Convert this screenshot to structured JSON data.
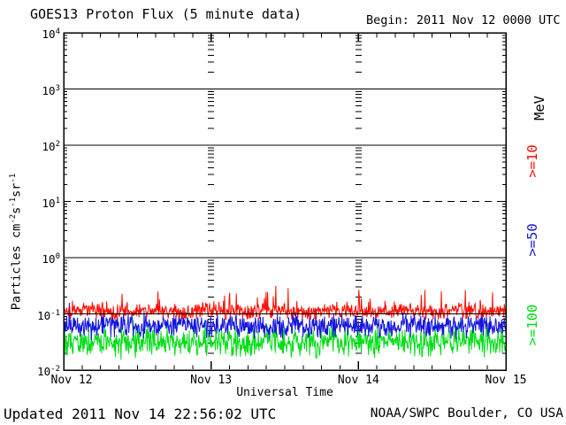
{
  "header": {
    "title": "GOES13 Proton Flux (5 minute data)",
    "begin": "Begin: 2011 Nov 12 0000 UTC"
  },
  "footer": {
    "updated": "Updated 2011 Nov 14 22:56:02 UTC",
    "source": "NOAA/SWPC Boulder, CO USA"
  },
  "chart_data": {
    "type": "line",
    "title": "GOES13 Proton Flux (5 minute data)",
    "xlabel": "Universal Time",
    "ylabel": "Particles cm^-2 s^-1 sr^-1",
    "ylabel_parts": [
      {
        "text": "Particles cm",
        "sup": false
      },
      {
        "text": "-2",
        "sup": true
      },
      {
        "text": "s",
        "sup": false
      },
      {
        "text": "-1",
        "sup": true
      },
      {
        "text": "sr",
        "sup": false
      },
      {
        "text": "-1",
        "sup": true
      }
    ],
    "legend_unit": "MeV",
    "x_axis": {
      "start_label": "Begin: 2011 Nov 12 0000 UTC",
      "days": 3,
      "tick_labels": [
        "Nov 12",
        "Nov 13",
        "Nov 14",
        "Nov 15"
      ],
      "minor_tick_hours": 3
    },
    "y_axis": {
      "scale": "log10",
      "min_exp": -2,
      "max_exp": 4,
      "tick_exponents": [
        4,
        3,
        2,
        1,
        0,
        -1,
        -2
      ]
    },
    "gridlines": [
      {
        "exp": 3,
        "style": "solid"
      },
      {
        "exp": 2,
        "style": "solid"
      },
      {
        "exp": 1,
        "style": "dashed"
      },
      {
        "exp": 0,
        "style": "solid"
      },
      {
        "exp": -1,
        "style": "solid"
      }
    ],
    "cadence_minutes": 5,
    "samples": 864,
    "series": [
      {
        "name": ">=10",
        "color": "#fb0d00",
        "approx_mean_flux": 0.11,
        "approx_range": [
          0.08,
          0.32
        ],
        "center_log": -0.95,
        "spread_log": 0.17,
        "spike_prob": 0.05,
        "spike_max_log": 0.38,
        "floor_log": -1.1,
        "seed": 1234567
      },
      {
        "name": ">=50",
        "color": "#1515dd",
        "approx_mean_flux": 0.06,
        "approx_range": [
          0.035,
          0.13
        ],
        "center_log": -1.22,
        "spread_log": 0.24,
        "spike_prob": 0.04,
        "spike_max_log": 0.25,
        "floor_log": -1.5,
        "seed": 7654321
      },
      {
        "name": ">=100",
        "color": "#00dd16",
        "approx_mean_flux": 0.032,
        "approx_range": [
          0.015,
          0.08
        ],
        "center_log": -1.5,
        "spread_log": 0.3,
        "spike_prob": 0.04,
        "spike_max_log": 0.28,
        "floor_log": -1.85,
        "seed": 2468135
      }
    ]
  }
}
